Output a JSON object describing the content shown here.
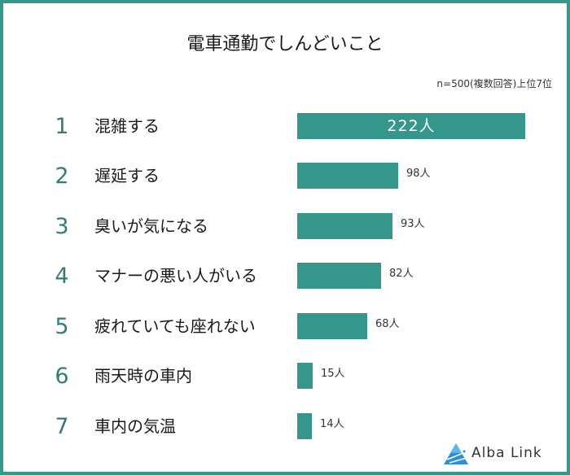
{
  "header": {
    "title": "電車通勤でしんどいこと",
    "subtitle": "n=500(複数回答)上位7位"
  },
  "colors": {
    "accent": "#35978c",
    "rank_number": "#2f7f76",
    "text": "#1a1a1a"
  },
  "rows": [
    {
      "rank": "1",
      "label": "混雑する",
      "value_label": "222人"
    },
    {
      "rank": "2",
      "label": "遅延する",
      "value_label": "98人"
    },
    {
      "rank": "3",
      "label": "臭いが気になる",
      "value_label": "93人"
    },
    {
      "rank": "4",
      "label": "マナーの悪い人がいる",
      "value_label": "82人"
    },
    {
      "rank": "5",
      "label": "疲れていても座れない",
      "value_label": "68人"
    },
    {
      "rank": "6",
      "label": "雨天時の車内",
      "value_label": "15人"
    },
    {
      "rank": "7",
      "label": "車内の気温",
      "value_label": "14人"
    }
  ],
  "logo": {
    "icon": "alba-link-triangle-icon",
    "text": "Alba Link"
  },
  "chart_data": {
    "type": "bar",
    "orientation": "horizontal",
    "title": "電車通勤でしんどいこと",
    "subtitle": "n=500(複数回答)上位7位",
    "categories": [
      "混雑する",
      "遅延する",
      "臭いが気になる",
      "マナーの悪い人がいる",
      "疲れていても座れない",
      "雨天時の車内",
      "車内の気温"
    ],
    "values": [
      222,
      98,
      93,
      82,
      68,
      15,
      14
    ],
    "unit": "人",
    "xlabel": "",
    "ylabel": "",
    "grid": false,
    "legend": null
  }
}
